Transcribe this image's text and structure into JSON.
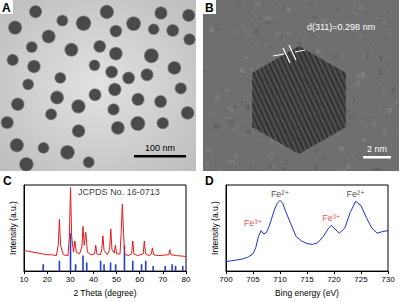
{
  "panels": [
    {
      "label": "A",
      "type": "image",
      "scale_bar": "100 nm"
    },
    {
      "label": "B",
      "type": "image",
      "annotation": "d(311)=0.298 nm",
      "scale_bar": "2 nm"
    }
  ],
  "chart_data": [
    {
      "label": "C",
      "type": "line",
      "x_label": "2 Theta (degree)",
      "y_label": "Intensity (a.u.)",
      "xlim": [
        10,
        80
      ],
      "xticks": [
        10,
        20,
        30,
        40,
        50,
        60,
        70,
        80
      ],
      "ylim": [
        0,
        100
      ],
      "yticks": [],
      "tick_labels": "x",
      "grid": false,
      "annotations": [
        {
          "text": "JCPDS No. 16-0713",
          "x": 51,
          "y": 92,
          "color": "#000000"
        }
      ],
      "series": [
        {
          "type": "line",
          "color": "#e31a1c",
          "x": [
            10,
            14,
            18,
            20,
            22,
            24,
            24.8,
            25.3,
            25.8,
            27,
            29,
            29.6,
            30.1,
            30.6,
            31.4,
            32,
            32.6,
            34,
            35,
            35.5,
            36,
            36.7,
            37.4,
            39,
            40.5,
            41,
            41.5,
            43,
            43.6,
            44.1,
            44.6,
            46,
            47,
            47.5,
            48,
            49,
            49.5,
            50,
            51.5,
            52,
            52.5,
            53,
            53.5,
            55,
            56.5,
            57,
            57.5,
            59,
            61.5,
            62,
            62.5,
            64,
            65,
            65.5,
            66,
            68,
            72.5,
            73,
            73.5,
            76,
            80
          ],
          "values": [
            24,
            22,
            20,
            19,
            19,
            18,
            30,
            60,
            30,
            19,
            18,
            40,
            97,
            40,
            22,
            35,
            22,
            20,
            28,
            52,
            30,
            45,
            22,
            19,
            20,
            30,
            20,
            19,
            25,
            41,
            24,
            19,
            25,
            49,
            25,
            21,
            30,
            20,
            20,
            45,
            78,
            45,
            20,
            18,
            20,
            35,
            20,
            18,
            20,
            35,
            20,
            18,
            20,
            27,
            19,
            18,
            19,
            25,
            19,
            18,
            17
          ]
        },
        {
          "type": "bar",
          "color": "#1f3fd6",
          "x": [
            18.3,
            25.3,
            30.1,
            32.3,
            35.5,
            37.1,
            43.1,
            44.6,
            47.4,
            49.6,
            53.4,
            57.0,
            60.8,
            62.6,
            65.8,
            71.0,
            74.0,
            75.5,
            78.6
          ],
          "values": [
            8,
            12,
            44,
            8,
            18,
            10,
            12,
            8,
            10,
            8,
            30,
            12,
            8,
            12,
            6,
            6,
            8,
            6,
            6
          ]
        }
      ]
    },
    {
      "label": "D",
      "type": "line",
      "x_label": "Bing energy (eV)",
      "y_label": "Intensity (a.u.)",
      "xlim": [
        700,
        730
      ],
      "xticks": [
        700,
        705,
        710,
        715,
        720,
        725,
        730
      ],
      "ylim": [
        0,
        100
      ],
      "yticks": [],
      "tick_labels": "x",
      "grid": false,
      "annotations": [
        {
          "text": "Fe³⁺",
          "x": 705,
          "y": 56,
          "color": "#e31a1c"
        },
        {
          "text": "Fe²⁺",
          "x": 710,
          "y": 90,
          "color": "#222222"
        },
        {
          "text": "Fe³⁺",
          "x": 719.5,
          "y": 62,
          "color": "#e31a1c"
        },
        {
          "text": "Fe²⁺",
          "x": 724,
          "y": 89,
          "color": "#222222"
        }
      ],
      "series": [
        {
          "type": "line",
          "color": "#1a33cc",
          "x": [
            700,
            701,
            702,
            703,
            704,
            705,
            705.5,
            706,
            706.5,
            707,
            707.5,
            708,
            709,
            709.5,
            710,
            710.5,
            711,
            712,
            713,
            714,
            715,
            716,
            717,
            718,
            719,
            719.5,
            720,
            721,
            722,
            723,
            724,
            725,
            726,
            727,
            728,
            729,
            730
          ],
          "values": [
            11,
            12,
            13,
            14,
            16,
            20,
            27,
            40,
            47,
            43,
            45,
            52,
            72,
            79,
            82,
            79,
            70,
            55,
            40,
            35,
            32,
            31,
            33,
            40,
            50,
            53,
            50,
            44,
            50,
            68,
            81,
            76,
            62,
            50,
            44,
            46,
            47
          ]
        }
      ]
    }
  ]
}
